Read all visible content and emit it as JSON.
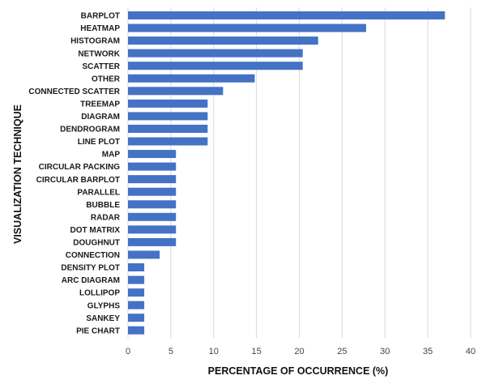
{
  "chart_data": {
    "type": "bar",
    "orientation": "horizontal",
    "title": "",
    "xlabel": "PERCENTAGE OF OCCURRENCE (%)",
    "ylabel": "VISUALIZATION TECHNIQUE",
    "xlim": [
      0,
      40
    ],
    "xticks": [
      "0",
      "5",
      "10",
      "15",
      "20",
      "25",
      "30",
      "35",
      "40"
    ],
    "grid": "vertical",
    "legend": "none",
    "bar_color": "#4472C4",
    "categories": [
      "BARPLOT",
      "HEATMAP",
      "HISTOGRAM",
      "NETWORK",
      "SCATTER",
      "OTHER",
      "CONNECTED SCATTER",
      "TREEMAP",
      "DIAGRAM",
      "DENDROGRAM",
      "LINE PLOT",
      "MAP",
      "CIRCULAR PACKING",
      "CIRCULAR BARPLOT",
      "PARALLEL",
      "BUBBLE",
      "RADAR",
      "DOT MATRIX",
      "DOUGHNUT",
      "CONNECTION",
      "DENSITY PLOT",
      "ARC DIAGRAM",
      "LOLLIPOP",
      "GLYPHS",
      "SANKEY",
      "PIE CHART"
    ],
    "values": [
      37.0,
      27.8,
      22.2,
      20.4,
      20.4,
      14.8,
      11.1,
      9.3,
      9.3,
      9.3,
      9.3,
      5.6,
      5.6,
      5.6,
      5.6,
      5.6,
      5.6,
      5.6,
      5.6,
      3.7,
      1.9,
      1.9,
      1.9,
      1.9,
      1.9,
      1.9
    ]
  }
}
